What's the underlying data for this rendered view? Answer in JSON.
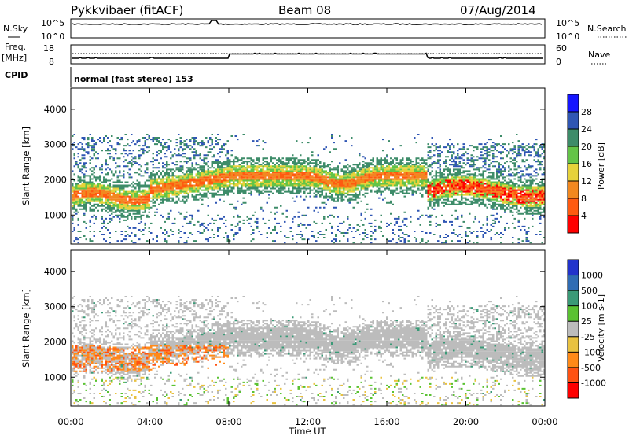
{
  "header": {
    "radar": "Pykkvibaer (fitACF)",
    "beam": "Beam 08",
    "date": "07/Aug/2014"
  },
  "panels": {
    "nsky_label": "N.Sky",
    "nsky_top": "10^5",
    "nsky_bottom": "10^0",
    "nsearch_label": "N.Search",
    "nsearch_top": "10^5",
    "nsearch_bottom": "10^0",
    "freq_label_1": "Freq.",
    "freq_label_2": "[MHz]",
    "freq_top": "18",
    "freq_bottom": "8",
    "nave_label": "Nave",
    "nave_top": "60",
    "nave_bottom": "0",
    "cpid_label": "CPID",
    "cpid_text": "normal (fast stereo) 153"
  },
  "chart_data": [
    {
      "type": "heatmap",
      "name": "power",
      "ylabel": "Slant Range [km]",
      "yticks": [
        "1000",
        "2000",
        "3000",
        "4000"
      ],
      "yrange": [
        180,
        4600
      ],
      "colorbar": {
        "label": "Power [dB]",
        "ticks": [
          "4",
          "8",
          "12",
          "16",
          "20",
          "24",
          "28"
        ],
        "range": [
          0,
          32
        ],
        "colors": [
          "#1515ff",
          "#2f56b4",
          "#3d8c69",
          "#63c447",
          "#e6d23a",
          "#f2881f",
          "#ff5a10",
          "#ff0000"
        ]
      }
    },
    {
      "type": "heatmap",
      "name": "velocity",
      "ylabel": "Slant Range [km]",
      "yticks": [
        "1000",
        "2000",
        "3000",
        "4000"
      ],
      "yrange": [
        180,
        4600
      ],
      "colorbar": {
        "label": "Velocity [m s-1]",
        "ticks": [
          "1000",
          "500",
          "100",
          "25",
          "-25",
          "-100",
          "-500",
          "-1000"
        ],
        "colors": [
          "#2233cc",
          "#2f6cb4",
          "#3a9a77",
          "#5ac232",
          "#bcbcbc",
          "#e9c240",
          "#ff8a18",
          "#ff5212",
          "#ff0000"
        ]
      }
    }
  ],
  "xaxis": {
    "ticks": [
      "00:00",
      "04:00",
      "08:00",
      "12:00",
      "16:00",
      "20:00",
      "00:00"
    ],
    "label": "Time UT"
  }
}
